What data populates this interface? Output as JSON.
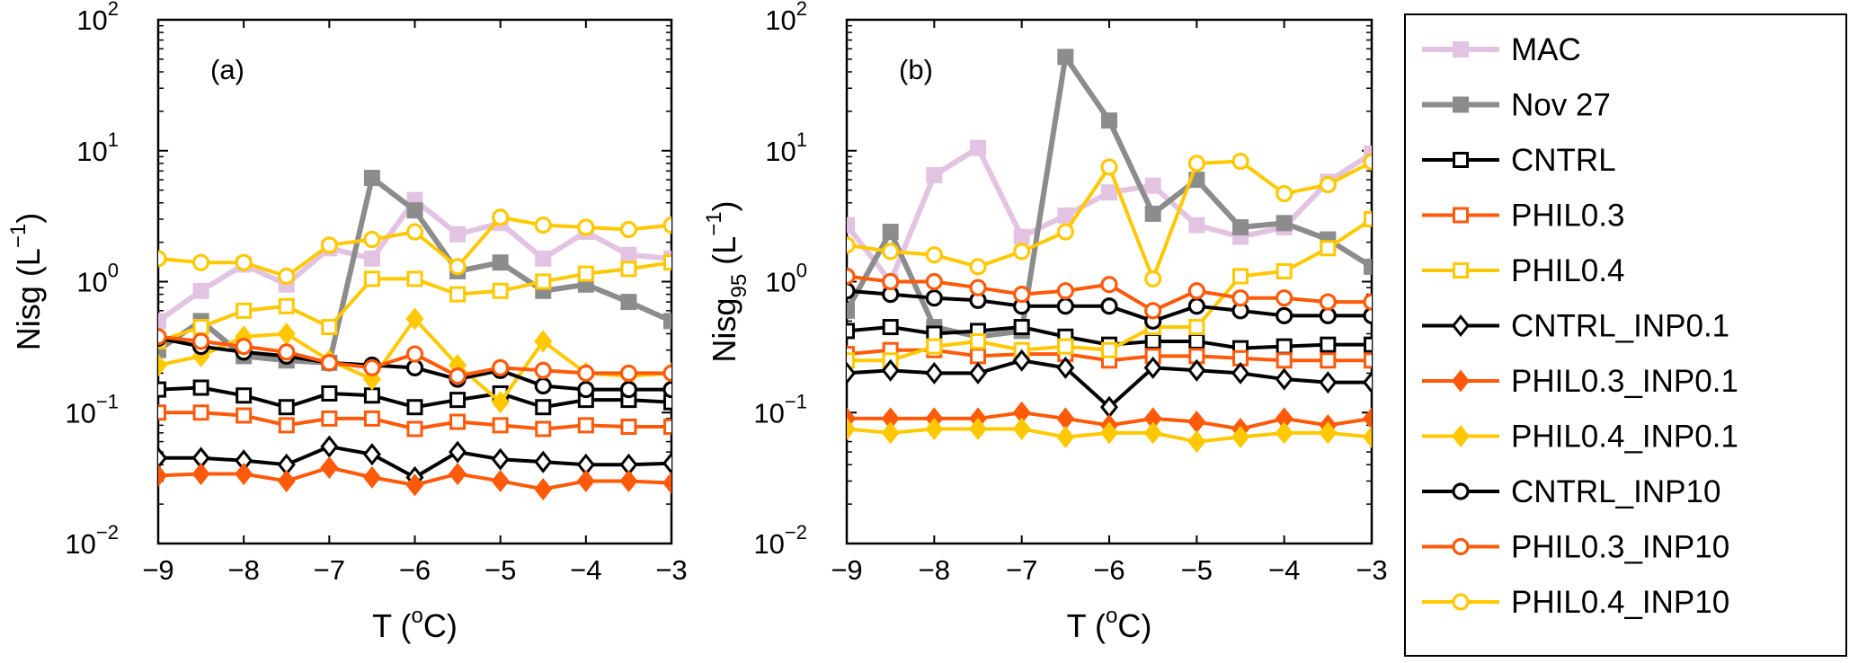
{
  "chart_data": [
    {
      "type": "line",
      "panel_label": "(a)",
      "xlabel": "T (",
      "xlabel_sup": "o",
      "xlabel_tail": "C)",
      "ylabel": "Nisg (L",
      "ylabel_sub": "",
      "ylabel_sup": "−1",
      "ylabel_tail": ")",
      "ylim": [
        0.01,
        100
      ],
      "yscale": "log",
      "xlim": [
        -9,
        -3
      ],
      "x_ticks": [
        "−9",
        "−8",
        "−7",
        "−6",
        "−5",
        "−4",
        "−3"
      ],
      "y_ticks": [
        {
          "base": "10",
          "exp": "−2"
        },
        {
          "base": "10",
          "exp": "−1"
        },
        {
          "base": "10",
          "exp": "0"
        },
        {
          "base": "10",
          "exp": "1"
        },
        {
          "base": "10",
          "exp": "2"
        }
      ],
      "x": [
        -9,
        -8.5,
        -8,
        -7.5,
        -7,
        -6.5,
        -6,
        -5.5,
        -5,
        -4.5,
        -4,
        -3.5,
        -3
      ],
      "series": [
        {
          "name": "MAC",
          "values": [
            0.5,
            0.85,
            1.35,
            0.95,
            1.8,
            1.5,
            4.2,
            2.3,
            2.8,
            1.5,
            2.4,
            1.6,
            1.5
          ]
        },
        {
          "name": "Nov 27",
          "values": [
            0.3,
            0.5,
            0.27,
            0.25,
            0.24,
            6.2,
            3.5,
            1.2,
            1.4,
            0.85,
            0.95,
            0.7,
            0.5
          ]
        },
        {
          "name": "CNTRL",
          "values": [
            0.15,
            0.155,
            0.135,
            0.11,
            0.14,
            0.135,
            0.11,
            0.125,
            0.14,
            0.11,
            0.125,
            0.125,
            0.12
          ]
        },
        {
          "name": "PHIL0.3",
          "values": [
            0.1,
            0.1,
            0.095,
            0.08,
            0.09,
            0.09,
            0.075,
            0.085,
            0.08,
            0.075,
            0.08,
            0.078,
            0.078
          ]
        },
        {
          "name": "PHIL0.4",
          "values": [
            0.35,
            0.45,
            0.6,
            0.65,
            0.45,
            1.05,
            1.05,
            0.8,
            0.85,
            1.0,
            1.15,
            1.25,
            1.4
          ]
        },
        {
          "name": "CNTRL_INP0.1",
          "values": [
            0.045,
            0.045,
            0.043,
            0.04,
            0.055,
            0.048,
            0.032,
            0.05,
            0.044,
            0.042,
            0.04,
            0.04,
            0.041
          ]
        },
        {
          "name": "PHIL0.3_INP0.1",
          "values": [
            0.033,
            0.034,
            0.034,
            0.03,
            0.038,
            0.032,
            0.028,
            0.034,
            0.03,
            0.026,
            0.03,
            0.03,
            0.029
          ]
        },
        {
          "name": "PHIL0.4_INP0.1",
          "values": [
            0.23,
            0.27,
            0.38,
            0.4,
            0.25,
            0.18,
            0.52,
            0.23,
            0.12,
            0.35,
            0.2,
            0.19,
            0.2
          ]
        },
        {
          "name": "CNTRL_INP10",
          "values": [
            0.37,
            0.32,
            0.29,
            0.27,
            0.24,
            0.23,
            0.22,
            0.18,
            0.21,
            0.16,
            0.15,
            0.15,
            0.15
          ]
        },
        {
          "name": "PHIL0.3_INP10",
          "values": [
            0.38,
            0.35,
            0.32,
            0.29,
            0.24,
            0.22,
            0.28,
            0.19,
            0.22,
            0.21,
            0.2,
            0.2,
            0.2
          ]
        },
        {
          "name": "PHIL0.4_INP10",
          "values": [
            1.5,
            1.4,
            1.4,
            1.1,
            1.9,
            2.1,
            2.4,
            1.3,
            3.1,
            2.7,
            2.6,
            2.5,
            2.7
          ]
        }
      ]
    },
    {
      "type": "line",
      "panel_label": "(b)",
      "xlabel": "T (",
      "xlabel_sup": "o",
      "xlabel_tail": "C)",
      "ylabel": "Nisg",
      "ylabel_sub": "95",
      "ylabel_sup": "−1",
      "ylabel_tail": " (L",
      "ylim": [
        0.01,
        100
      ],
      "yscale": "log",
      "xlim": [
        -9,
        -3
      ],
      "x_ticks": [
        "−9",
        "−8",
        "−7",
        "−6",
        "−5",
        "−4",
        "−3"
      ],
      "y_ticks": [
        {
          "base": "10",
          "exp": "−2"
        },
        {
          "base": "10",
          "exp": "−1"
        },
        {
          "base": "10",
          "exp": "0"
        },
        {
          "base": "10",
          "exp": "1"
        },
        {
          "base": "10",
          "exp": "2"
        }
      ],
      "x": [
        -9,
        -8.5,
        -8,
        -7.5,
        -7,
        -6.5,
        -6,
        -5.5,
        -5,
        -4.5,
        -4,
        -3.5,
        -3
      ],
      "series": [
        {
          "name": "MAC",
          "values": [
            2.7,
            1.0,
            6.5,
            10.5,
            2.2,
            3.2,
            4.8,
            5.4,
            2.7,
            2.2,
            2.6,
            5.8,
            9.5
          ]
        },
        {
          "name": "Nov 27",
          "values": [
            0.6,
            2.4,
            0.45,
            0.38,
            0.42,
            52,
            17,
            3.3,
            6.0,
            2.6,
            2.8,
            2.1,
            1.3
          ]
        },
        {
          "name": "CNTRL",
          "values": [
            0.42,
            0.45,
            0.4,
            0.42,
            0.45,
            0.38,
            0.33,
            0.35,
            0.35,
            0.31,
            0.32,
            0.33,
            0.33
          ]
        },
        {
          "name": "PHIL0.3",
          "values": [
            0.28,
            0.3,
            0.3,
            0.27,
            0.28,
            0.28,
            0.25,
            0.27,
            0.27,
            0.26,
            0.25,
            0.25,
            0.25
          ]
        },
        {
          "name": "PHIL0.4",
          "values": [
            0.25,
            0.25,
            0.32,
            0.35,
            0.3,
            0.32,
            0.3,
            0.45,
            0.45,
            1.1,
            1.2,
            1.8,
            3.0
          ]
        },
        {
          "name": "CNTRL_INP0.1",
          "values": [
            0.2,
            0.21,
            0.2,
            0.2,
            0.25,
            0.22,
            0.11,
            0.22,
            0.21,
            0.2,
            0.18,
            0.17,
            0.17
          ]
        },
        {
          "name": "PHIL0.3_INP0.1",
          "values": [
            0.09,
            0.09,
            0.09,
            0.09,
            0.1,
            0.09,
            0.08,
            0.09,
            0.085,
            0.075,
            0.09,
            0.08,
            0.09
          ]
        },
        {
          "name": "PHIL0.4_INP0.1",
          "values": [
            0.075,
            0.07,
            0.075,
            0.075,
            0.075,
            0.065,
            0.07,
            0.07,
            0.06,
            0.065,
            0.07,
            0.07,
            0.065
          ]
        },
        {
          "name": "CNTRL_INP10",
          "values": [
            0.85,
            0.8,
            0.75,
            0.72,
            0.65,
            0.65,
            0.65,
            0.5,
            0.65,
            0.6,
            0.55,
            0.55,
            0.55
          ]
        },
        {
          "name": "PHIL0.3_INP10",
          "values": [
            1.1,
            1.0,
            1.0,
            0.9,
            0.8,
            0.85,
            0.95,
            0.6,
            0.85,
            0.75,
            0.75,
            0.7,
            0.7
          ]
        },
        {
          "name": "PHIL0.4_INP10",
          "values": [
            1.9,
            1.7,
            1.6,
            1.3,
            1.7,
            2.4,
            7.5,
            1.05,
            8.0,
            8.3,
            4.7,
            5.5,
            8.2
          ]
        }
      ]
    }
  ],
  "legend": {
    "placement": "right",
    "entries": [
      {
        "name": "MAC",
        "color": "#e2c4e2",
        "marker": "square",
        "filled": true,
        "line_width": 6
      },
      {
        "name": "Nov 27",
        "color": "#8c8c8c",
        "marker": "square",
        "filled": true,
        "line_width": 6
      },
      {
        "name": "CNTRL",
        "color": "#000000",
        "marker": "square",
        "filled": false,
        "line_width": 4
      },
      {
        "name": "PHIL0.3",
        "color": "#ff5a0a",
        "marker": "square",
        "filled": false,
        "line_width": 4
      },
      {
        "name": "PHIL0.4",
        "color": "#ffc800",
        "marker": "square",
        "filled": false,
        "line_width": 4
      },
      {
        "name": "CNTRL_INP0.1",
        "color": "#000000",
        "marker": "diamond",
        "filled": false,
        "line_width": 4
      },
      {
        "name": "PHIL0.3_INP0.1",
        "color": "#ff5a0a",
        "marker": "diamond",
        "filled": true,
        "line_width": 4
      },
      {
        "name": "PHIL0.4_INP0.1",
        "color": "#ffc800",
        "marker": "diamond",
        "filled": true,
        "line_width": 4
      },
      {
        "name": "CNTRL_INP10",
        "color": "#000000",
        "marker": "circle",
        "filled": false,
        "line_width": 4
      },
      {
        "name": "PHIL0.3_INP10",
        "color": "#ff5a0a",
        "marker": "circle",
        "filled": false,
        "line_width": 4
      },
      {
        "name": "PHIL0.4_INP10",
        "color": "#ffc800",
        "marker": "circle",
        "filled": false,
        "line_width": 4
      }
    ]
  }
}
